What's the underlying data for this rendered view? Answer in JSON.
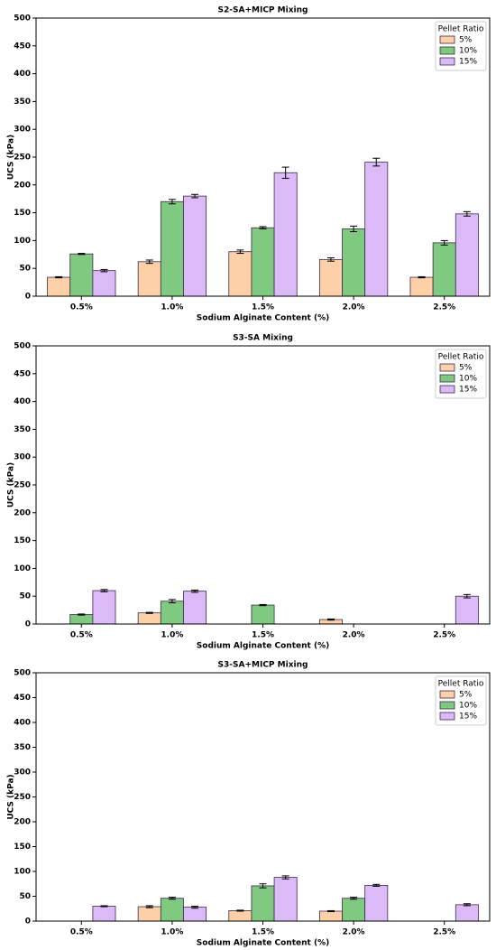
{
  "chart_data": [
    {
      "type": "bar",
      "title": "S2-SA+MICP Mixing",
      "xlabel": "Sodium Alginate Content (%)",
      "ylabel": "UCS (kPa)",
      "categories": [
        "0.5%",
        "1.0%",
        "1.5%",
        "2.0%",
        "2.5%"
      ],
      "legend_title": "Pellet Ratio",
      "legend": "upper right",
      "series": [
        {
          "name": "5%",
          "color": "#fdd0a8",
          "values": [
            34,
            62,
            80,
            66,
            34
          ],
          "errors": [
            1,
            3,
            3,
            3,
            1
          ]
        },
        {
          "name": "10%",
          "color": "#80c980",
          "values": [
            76,
            170,
            123,
            121,
            96
          ],
          "errors": [
            1,
            4,
            2,
            5,
            4
          ]
        },
        {
          "name": "15%",
          "color": "#dcbaf8",
          "values": [
            46,
            180,
            222,
            241,
            148
          ],
          "errors": [
            2,
            3,
            10,
            7,
            4
          ]
        }
      ],
      "ylim": [
        0,
        500
      ],
      "yticks": [
        0,
        50,
        100,
        150,
        200,
        250,
        300,
        350,
        400,
        450,
        500
      ]
    },
    {
      "type": "bar",
      "title": "S3-SA Mixing",
      "xlabel": "Sodium Alginate Content (%)",
      "ylabel": "UCS (kPa)",
      "categories": [
        "0.5%",
        "1.0%",
        "1.5%",
        "2.0%",
        "2.5%"
      ],
      "legend_title": "Pellet Ratio",
      "legend": "upper right",
      "series": [
        {
          "name": "5%",
          "color": "#fdd0a8",
          "values": [
            0,
            20,
            0,
            8,
            0
          ],
          "errors": [
            0,
            1,
            0,
            1,
            0
          ]
        },
        {
          "name": "10%",
          "color": "#80c980",
          "values": [
            17,
            41,
            34,
            0,
            0
          ],
          "errors": [
            1,
            3,
            1,
            0,
            0
          ]
        },
        {
          "name": "15%",
          "color": "#dcbaf8",
          "values": [
            60,
            59,
            0,
            0,
            50
          ],
          "errors": [
            2,
            2,
            0,
            0,
            3
          ]
        }
      ],
      "ylim": [
        0,
        500
      ],
      "yticks": [
        0,
        50,
        100,
        150,
        200,
        250,
        300,
        350,
        400,
        450,
        500
      ]
    },
    {
      "type": "bar",
      "title": "S3-SA+MICP Mixing",
      "xlabel": "Sodium Alginate Content (%)",
      "ylabel": "UCS (kPa)",
      "categories": [
        "0.5%",
        "1.0%",
        "1.5%",
        "2.0%",
        "2.5%"
      ],
      "legend_title": "Pellet Ratio",
      "legend": "upper right",
      "series": [
        {
          "name": "5%",
          "color": "#fdd0a8",
          "values": [
            0,
            29,
            21,
            20,
            0
          ],
          "errors": [
            0,
            2,
            1,
            1,
            0
          ]
        },
        {
          "name": "10%",
          "color": "#80c980",
          "values": [
            0,
            46,
            71,
            46,
            0
          ],
          "errors": [
            0,
            2,
            4,
            2,
            0
          ]
        },
        {
          "name": "15%",
          "color": "#dcbaf8",
          "values": [
            30,
            28,
            88,
            72,
            33
          ],
          "errors": [
            1,
            2,
            3,
            2,
            2
          ]
        }
      ],
      "ylim": [
        0,
        500
      ],
      "yticks": [
        0,
        50,
        100,
        150,
        200,
        250,
        300,
        350,
        400,
        450,
        500
      ]
    }
  ]
}
